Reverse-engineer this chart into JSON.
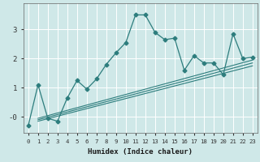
{
  "xlabel": "Humidex (Indice chaleur)",
  "ylabel": "",
  "bg_color": "#cfe8e8",
  "grid_color": "#ffffff",
  "line_color": "#2d7d7d",
  "x_data": [
    0,
    1,
    2,
    3,
    4,
    5,
    6,
    7,
    8,
    9,
    10,
    11,
    12,
    13,
    14,
    15,
    16,
    17,
    18,
    19,
    20,
    21,
    22,
    23
  ],
  "y_main": [
    -0.3,
    1.1,
    -0.05,
    -0.15,
    0.65,
    1.25,
    0.95,
    1.3,
    1.8,
    2.2,
    2.55,
    3.5,
    3.5,
    2.9,
    2.65,
    2.7,
    1.6,
    2.1,
    1.85,
    1.85,
    1.45,
    2.85,
    2.0,
    2.05
  ],
  "reg_lines": [
    {
      "x": [
        1,
        23
      ],
      "y": [
        -0.05,
        1.95
      ]
    },
    {
      "x": [
        1,
        23
      ],
      "y": [
        -0.1,
        1.85
      ]
    },
    {
      "x": [
        1,
        23
      ],
      "y": [
        -0.15,
        1.75
      ]
    }
  ],
  "yticks": [
    0,
    1,
    2,
    3
  ],
  "ytick_labels": [
    "-0",
    "1",
    "2",
    "3"
  ],
  "ylim": [
    -0.55,
    3.9
  ],
  "xlim": [
    -0.5,
    23.5
  ],
  "xtick_labels": [
    "0",
    "1",
    "2",
    "3",
    "4",
    "5",
    "6",
    "7",
    "8",
    "9",
    "10",
    "11",
    "12",
    "13",
    "14",
    "15",
    "16",
    "17",
    "18",
    "19",
    "20",
    "21",
    "22",
    "23"
  ]
}
